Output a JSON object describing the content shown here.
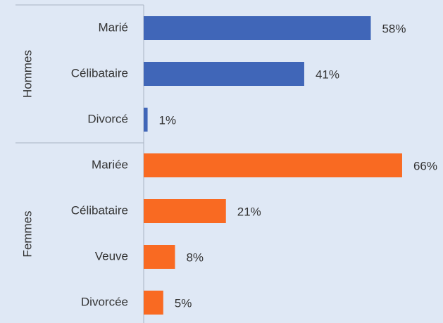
{
  "chart_data": {
    "type": "bar",
    "groups": [
      {
        "name": "Hommes",
        "color": "#4066b8",
        "categories": [
          "Marié",
          "Célibataire",
          "Divorcé"
        ],
        "values": [
          58,
          41,
          1
        ],
        "value_labels": [
          "58%",
          "41%",
          "1%"
        ]
      },
      {
        "name": "Femmes",
        "color": "#f96a22",
        "categories": [
          "Mariée",
          "Célibataire",
          "Veuve",
          "Divorcée"
        ],
        "values": [
          66,
          21,
          8,
          5
        ],
        "value_labels": [
          "66%",
          "21%",
          "8%",
          "5%"
        ]
      }
    ]
  }
}
